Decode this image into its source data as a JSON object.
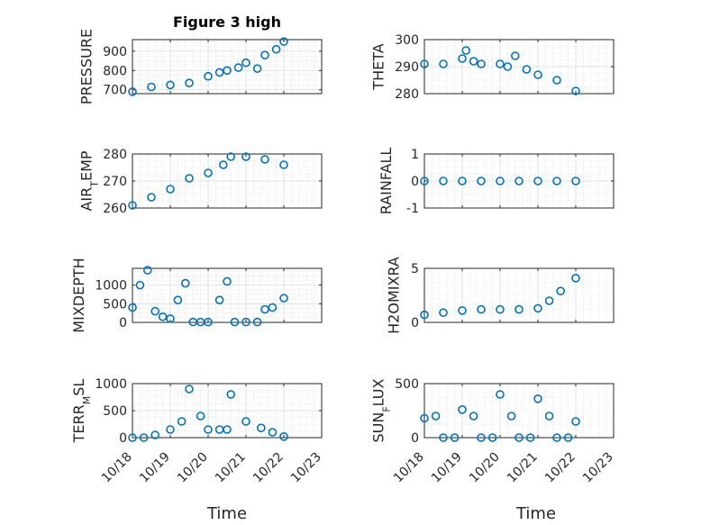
{
  "figure": {
    "title": "Figure 3 high",
    "xlabel": "Time",
    "marker_color": "#0072BD",
    "x_ticks": [
      "10/18",
      "10/19",
      "10/20",
      "10/21",
      "10/22",
      "10/23"
    ]
  },
  "chart_data": [
    {
      "type": "scatter",
      "ylabel": "PRESSURE",
      "ylim": [
        680,
        960
      ],
      "yticks": [
        700,
        800,
        900
      ],
      "grid": true,
      "x": [
        0.0,
        0.5,
        1.0,
        1.5,
        2.0,
        2.3,
        2.5,
        2.8,
        3.0,
        3.3,
        3.5,
        3.8,
        4.0
      ],
      "y": [
        690,
        715,
        725,
        735,
        770,
        790,
        800,
        815,
        840,
        810,
        880,
        910,
        950
      ]
    },
    {
      "type": "scatter",
      "ylabel": "THETA",
      "ylim": [
        280,
        300
      ],
      "yticks": [
        280,
        290,
        300
      ],
      "grid": true,
      "x": [
        0.0,
        0.5,
        1.0,
        1.1,
        1.3,
        1.5,
        2.0,
        2.2,
        2.4,
        2.7,
        3.0,
        3.5,
        4.0
      ],
      "y": [
        291,
        291,
        293,
        296,
        292,
        291,
        291,
        290,
        294,
        289,
        287,
        285,
        281
      ]
    },
    {
      "type": "scatter",
      "ylabel": "AIR_TEMP",
      "ylim": [
        260,
        280
      ],
      "yticks": [
        260,
        270,
        280
      ],
      "grid": true,
      "x": [
        0.0,
        0.5,
        1.0,
        1.5,
        2.0,
        2.4,
        2.6,
        3.0,
        3.5,
        4.0
      ],
      "y": [
        261,
        264,
        267,
        271,
        273,
        276,
        279,
        279,
        278,
        276
      ]
    },
    {
      "type": "scatter",
      "ylabel": "RAINFALL",
      "ylim": [
        -1,
        1
      ],
      "yticks": [
        -1,
        0,
        1
      ],
      "grid": true,
      "x": [
        0.0,
        0.5,
        1.0,
        1.5,
        2.0,
        2.5,
        3.0,
        3.5,
        4.0
      ],
      "y": [
        0,
        0,
        0,
        0,
        0,
        0,
        0,
        0,
        0
      ]
    },
    {
      "type": "scatter",
      "ylabel": "MIXDEPTH",
      "ylim": [
        0,
        1450
      ],
      "yticks": [
        0,
        500,
        1000
      ],
      "grid": true,
      "x": [
        0.0,
        0.2,
        0.4,
        0.6,
        0.8,
        1.0,
        1.2,
        1.4,
        1.6,
        1.8,
        2.0,
        2.3,
        2.5,
        2.7,
        3.0,
        3.3,
        3.5,
        3.7,
        4.0
      ],
      "y": [
        400,
        1000,
        1400,
        300,
        150,
        100,
        600,
        1050,
        10,
        10,
        10,
        600,
        1100,
        10,
        10,
        10,
        350,
        400,
        650
      ]
    },
    {
      "type": "scatter",
      "ylabel": "H2OMIXRA",
      "ylim": [
        0,
        5
      ],
      "yticks": [
        0,
        5
      ],
      "grid": true,
      "x": [
        0.0,
        0.5,
        1.0,
        1.5,
        2.0,
        2.5,
        3.0,
        3.3,
        3.6,
        4.0
      ],
      "y": [
        0.7,
        0.9,
        1.1,
        1.2,
        1.2,
        1.2,
        1.3,
        2.0,
        2.9,
        4.1
      ]
    },
    {
      "type": "scatter",
      "ylabel": "TERR_MSL",
      "ylim": [
        0,
        1000
      ],
      "yticks": [
        0,
        500,
        1000
      ],
      "grid": true,
      "x": [
        0.0,
        0.3,
        0.6,
        1.0,
        1.3,
        1.5,
        1.8,
        2.0,
        2.3,
        2.5,
        2.6,
        3.0,
        3.4,
        3.7,
        4.0
      ],
      "y": [
        0,
        0,
        50,
        150,
        300,
        900,
        400,
        150,
        150,
        150,
        800,
        300,
        180,
        100,
        20
      ]
    },
    {
      "type": "scatter",
      "ylabel": "SUN_FLUX",
      "ylim": [
        0,
        500
      ],
      "yticks": [
        0,
        500
      ],
      "grid": true,
      "x": [
        0.0,
        0.3,
        0.5,
        0.8,
        1.0,
        1.3,
        1.5,
        1.8,
        2.0,
        2.3,
        2.5,
        2.8,
        3.0,
        3.3,
        3.5,
        3.8,
        4.0
      ],
      "y": [
        180,
        200,
        0,
        0,
        260,
        200,
        0,
        0,
        400,
        200,
        0,
        0,
        360,
        200,
        0,
        0,
        150
      ]
    }
  ]
}
